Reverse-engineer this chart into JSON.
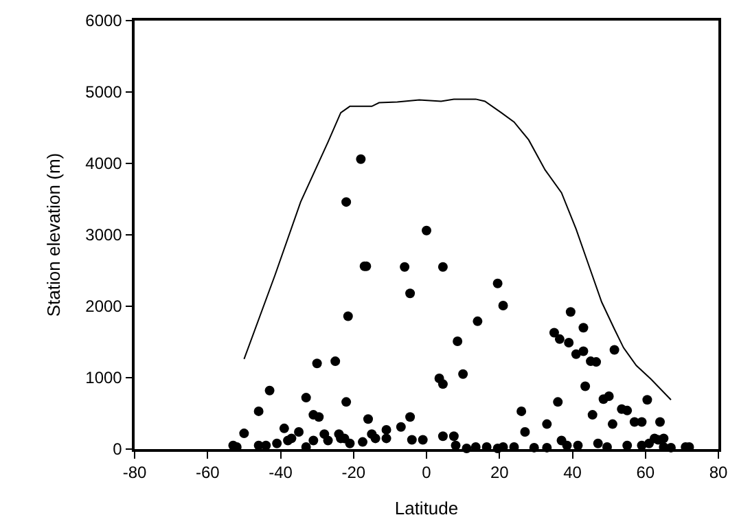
{
  "chart_data": {
    "type": "scatter",
    "xlabel": "Latitude",
    "ylabel": "Station elevation (m)",
    "xlim": [
      -80,
      80
    ],
    "xticks": [
      -80,
      -60,
      -40,
      -20,
      0,
      20,
      40,
      60,
      80
    ],
    "ylim": [
      0,
      6000
    ],
    "yticks": [
      0,
      1000,
      2000,
      3000,
      4000,
      5000,
      6000
    ],
    "series": [
      {
        "marker": "circle",
        "color": "#000000",
        "x": [
          -53,
          -52,
          -50,
          -46,
          -46,
          -43,
          -44,
          -41,
          -39,
          -38,
          -37,
          -35,
          -33,
          -33,
          -31,
          -30,
          -29.5,
          -31,
          -28,
          -27,
          -25,
          -24,
          -23.5,
          -22,
          -22,
          -21.5,
          -22.5,
          -21,
          -18,
          -17,
          -16.5,
          -16,
          -17.5,
          -15,
          -14,
          -11,
          -11,
          -7,
          -6,
          -4.5,
          -4.5,
          -4,
          -1,
          0,
          3.5,
          4.5,
          4.5,
          4.5,
          7.5,
          8,
          8.5,
          10,
          11,
          13.5,
          14,
          16.5,
          19.5,
          19.5,
          21,
          21,
          24,
          26,
          27,
          29.5,
          33,
          33,
          35,
          36.5,
          36,
          37,
          39,
          39.5,
          38.5,
          41,
          41.5,
          43,
          43,
          43.5,
          45,
          46.5,
          45.5,
          47,
          48.5,
          50,
          49.5,
          51,
          51.5,
          53.5,
          55,
          55,
          57,
          59,
          59,
          60.5,
          61,
          62.5,
          63.5,
          64,
          65,
          65,
          67,
          71,
          72
        ],
        "values": [
          50,
          30,
          220,
          530,
          50,
          820,
          50,
          80,
          290,
          120,
          150,
          240,
          720,
          30,
          480,
          1200,
          450,
          120,
          210,
          120,
          1230,
          210,
          150,
          3460,
          660,
          1860,
          150,
          80,
          4060,
          2560,
          2560,
          420,
          100,
          210,
          150,
          270,
          150,
          310,
          2550,
          2180,
          450,
          130,
          130,
          3060,
          990,
          910,
          2550,
          180,
          180,
          50,
          1510,
          1050,
          10,
          30,
          1790,
          30,
          2320,
          10,
          2010,
          30,
          30,
          530,
          240,
          20,
          350,
          20,
          1630,
          1540,
          660,
          120,
          1490,
          1920,
          50,
          1330,
          50,
          1700,
          1370,
          880,
          1230,
          1220,
          480,
          80,
          700,
          740,
          30,
          350,
          1390,
          560,
          540,
          50,
          380,
          380,
          50,
          690,
          80,
          150,
          130,
          380,
          150,
          30,
          20,
          30,
          30
        ]
      },
      {
        "type": "line",
        "marker": "none",
        "line_style": "solid",
        "color": "#000000",
        "x": [
          -50,
          -41.5,
          -34.5,
          -27,
          -23.5,
          -21,
          -15,
          -13,
          -8,
          -2,
          4,
          7.5,
          13.5,
          16,
          20.5,
          24,
          28,
          32.5,
          37,
          41,
          44.5,
          48,
          51.5,
          54,
          57.5,
          61.5,
          67
        ],
        "values": [
          1260,
          2440,
          3460,
          4300,
          4710,
          4800,
          4800,
          4850,
          4860,
          4890,
          4870,
          4900,
          4900,
          4870,
          4710,
          4580,
          4330,
          3910,
          3590,
          3080,
          2570,
          2060,
          1680,
          1420,
          1170,
          980,
          690
        ]
      }
    ]
  }
}
